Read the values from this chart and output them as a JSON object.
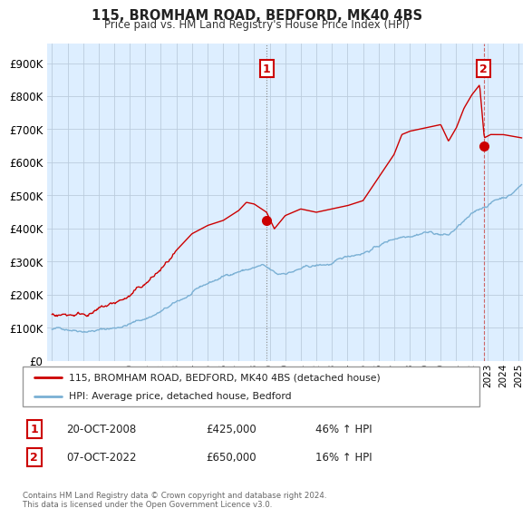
{
  "title": "115, BROMHAM ROAD, BEDFORD, MK40 4BS",
  "subtitle": "Price paid vs. HM Land Registry's House Price Index (HPI)",
  "ytick_values": [
    0,
    100000,
    200000,
    300000,
    400000,
    500000,
    600000,
    700000,
    800000,
    900000
  ],
  "ylim": [
    0,
    960000
  ],
  "xlim_start": 1994.7,
  "xlim_end": 2025.3,
  "hpi_color": "#7ab0d4",
  "price_color": "#cc0000",
  "chart_bg_color": "#ddeeff",
  "grid_color": "#bbccdd",
  "marker1_date": 2008.8,
  "marker1_price": 425000,
  "marker2_date": 2022.77,
  "marker2_price": 650000,
  "legend_label1": "115, BROMHAM ROAD, BEDFORD, MK40 4BS (detached house)",
  "legend_label2": "HPI: Average price, detached house, Bedford",
  "annotation1_date": "20-OCT-2008",
  "annotation1_price": "£425,000",
  "annotation1_change": "46% ↑ HPI",
  "annotation2_date": "07-OCT-2022",
  "annotation2_price": "£650,000",
  "annotation2_change": "16% ↑ HPI",
  "footer": "Contains HM Land Registry data © Crown copyright and database right 2024.\nThis data is licensed under the Open Government Licence v3.0.",
  "background_color": "#ffffff"
}
